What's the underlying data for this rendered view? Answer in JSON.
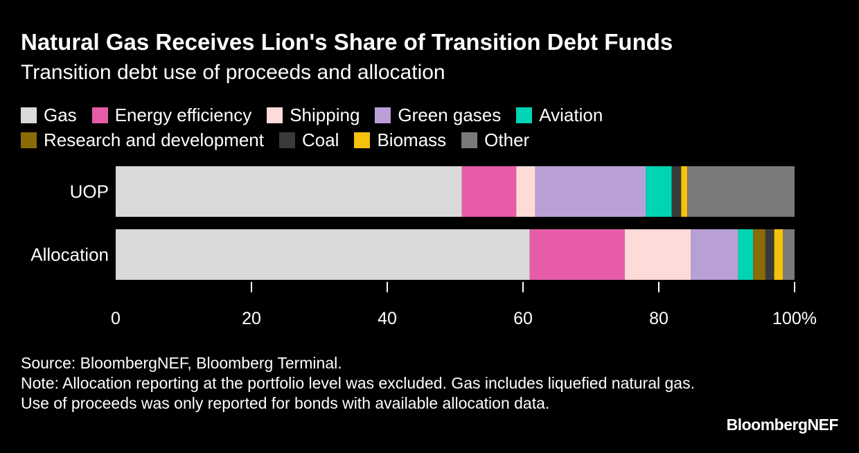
{
  "header": {
    "title": "Natural Gas Receives Lion's Share of Transition Debt Funds",
    "subtitle": "Transition debt use of proceeds and allocation"
  },
  "chart_data": {
    "type": "bar",
    "orientation": "horizontal",
    "stacked": true,
    "title": "Natural Gas Receives Lion's Share of Transition Debt Funds",
    "subtitle": "Transition debt use of proceeds and allocation",
    "categories": [
      "UOP",
      "Allocation"
    ],
    "series": [
      {
        "name": "Gas",
        "color": "#d9d9d9",
        "values": [
          51.0,
          61.0
        ]
      },
      {
        "name": "Energy efficiency",
        "color": "#e65ca8",
        "values": [
          8.0,
          14.0
        ]
      },
      {
        "name": "Shipping",
        "color": "#fddbd8",
        "values": [
          2.8,
          9.7
        ]
      },
      {
        "name": "Green gases",
        "color": "#b8a0d6",
        "values": [
          16.3,
          7.0
        ]
      },
      {
        "name": "Aviation",
        "color": "#00d5b3",
        "values": [
          3.8,
          2.2
        ]
      },
      {
        "name": "Research and development",
        "color": "#8b6b08",
        "values": [
          0.0,
          1.8
        ]
      },
      {
        "name": "Coal",
        "color": "#3a3a3a",
        "values": [
          1.4,
          1.3
        ]
      },
      {
        "name": "Biomass",
        "color": "#f5c20c",
        "values": [
          0.9,
          1.3
        ]
      },
      {
        "name": "Other",
        "color": "#7a7a7a",
        "values": [
          15.8,
          1.7
        ]
      }
    ],
    "x_ticks": [
      "0",
      "20",
      "40",
      "60",
      "80",
      "100%"
    ],
    "xlim": [
      0,
      100
    ],
    "xlabel": "",
    "ylabel": "",
    "legend_position": "top-left"
  },
  "legend": {
    "rows": [
      [
        {
          "label": "Gas",
          "color": "#d9d9d9"
        },
        {
          "label": "Energy efficiency",
          "color": "#e65ca8"
        },
        {
          "label": "Shipping",
          "color": "#fddbd8"
        },
        {
          "label": "Green gases",
          "color": "#b8a0d6"
        },
        {
          "label": "Aviation",
          "color": "#00d5b3"
        }
      ],
      [
        {
          "label": "Research and development",
          "color": "#8b6b08"
        },
        {
          "label": "Coal",
          "color": "#3a3a3a"
        },
        {
          "label": "Biomass",
          "color": "#f5c20c"
        },
        {
          "label": "Other",
          "color": "#7a7a7a"
        }
      ]
    ]
  },
  "footer": {
    "source": "Source: BloombergNEF, Bloomberg Terminal.",
    "note": "Note: Allocation reporting at the portfolio level was excluded. Gas includes liquefied natural gas. Use of proceeds was only reported for bonds with available allocation data.",
    "brand": "BloombergNEF"
  }
}
